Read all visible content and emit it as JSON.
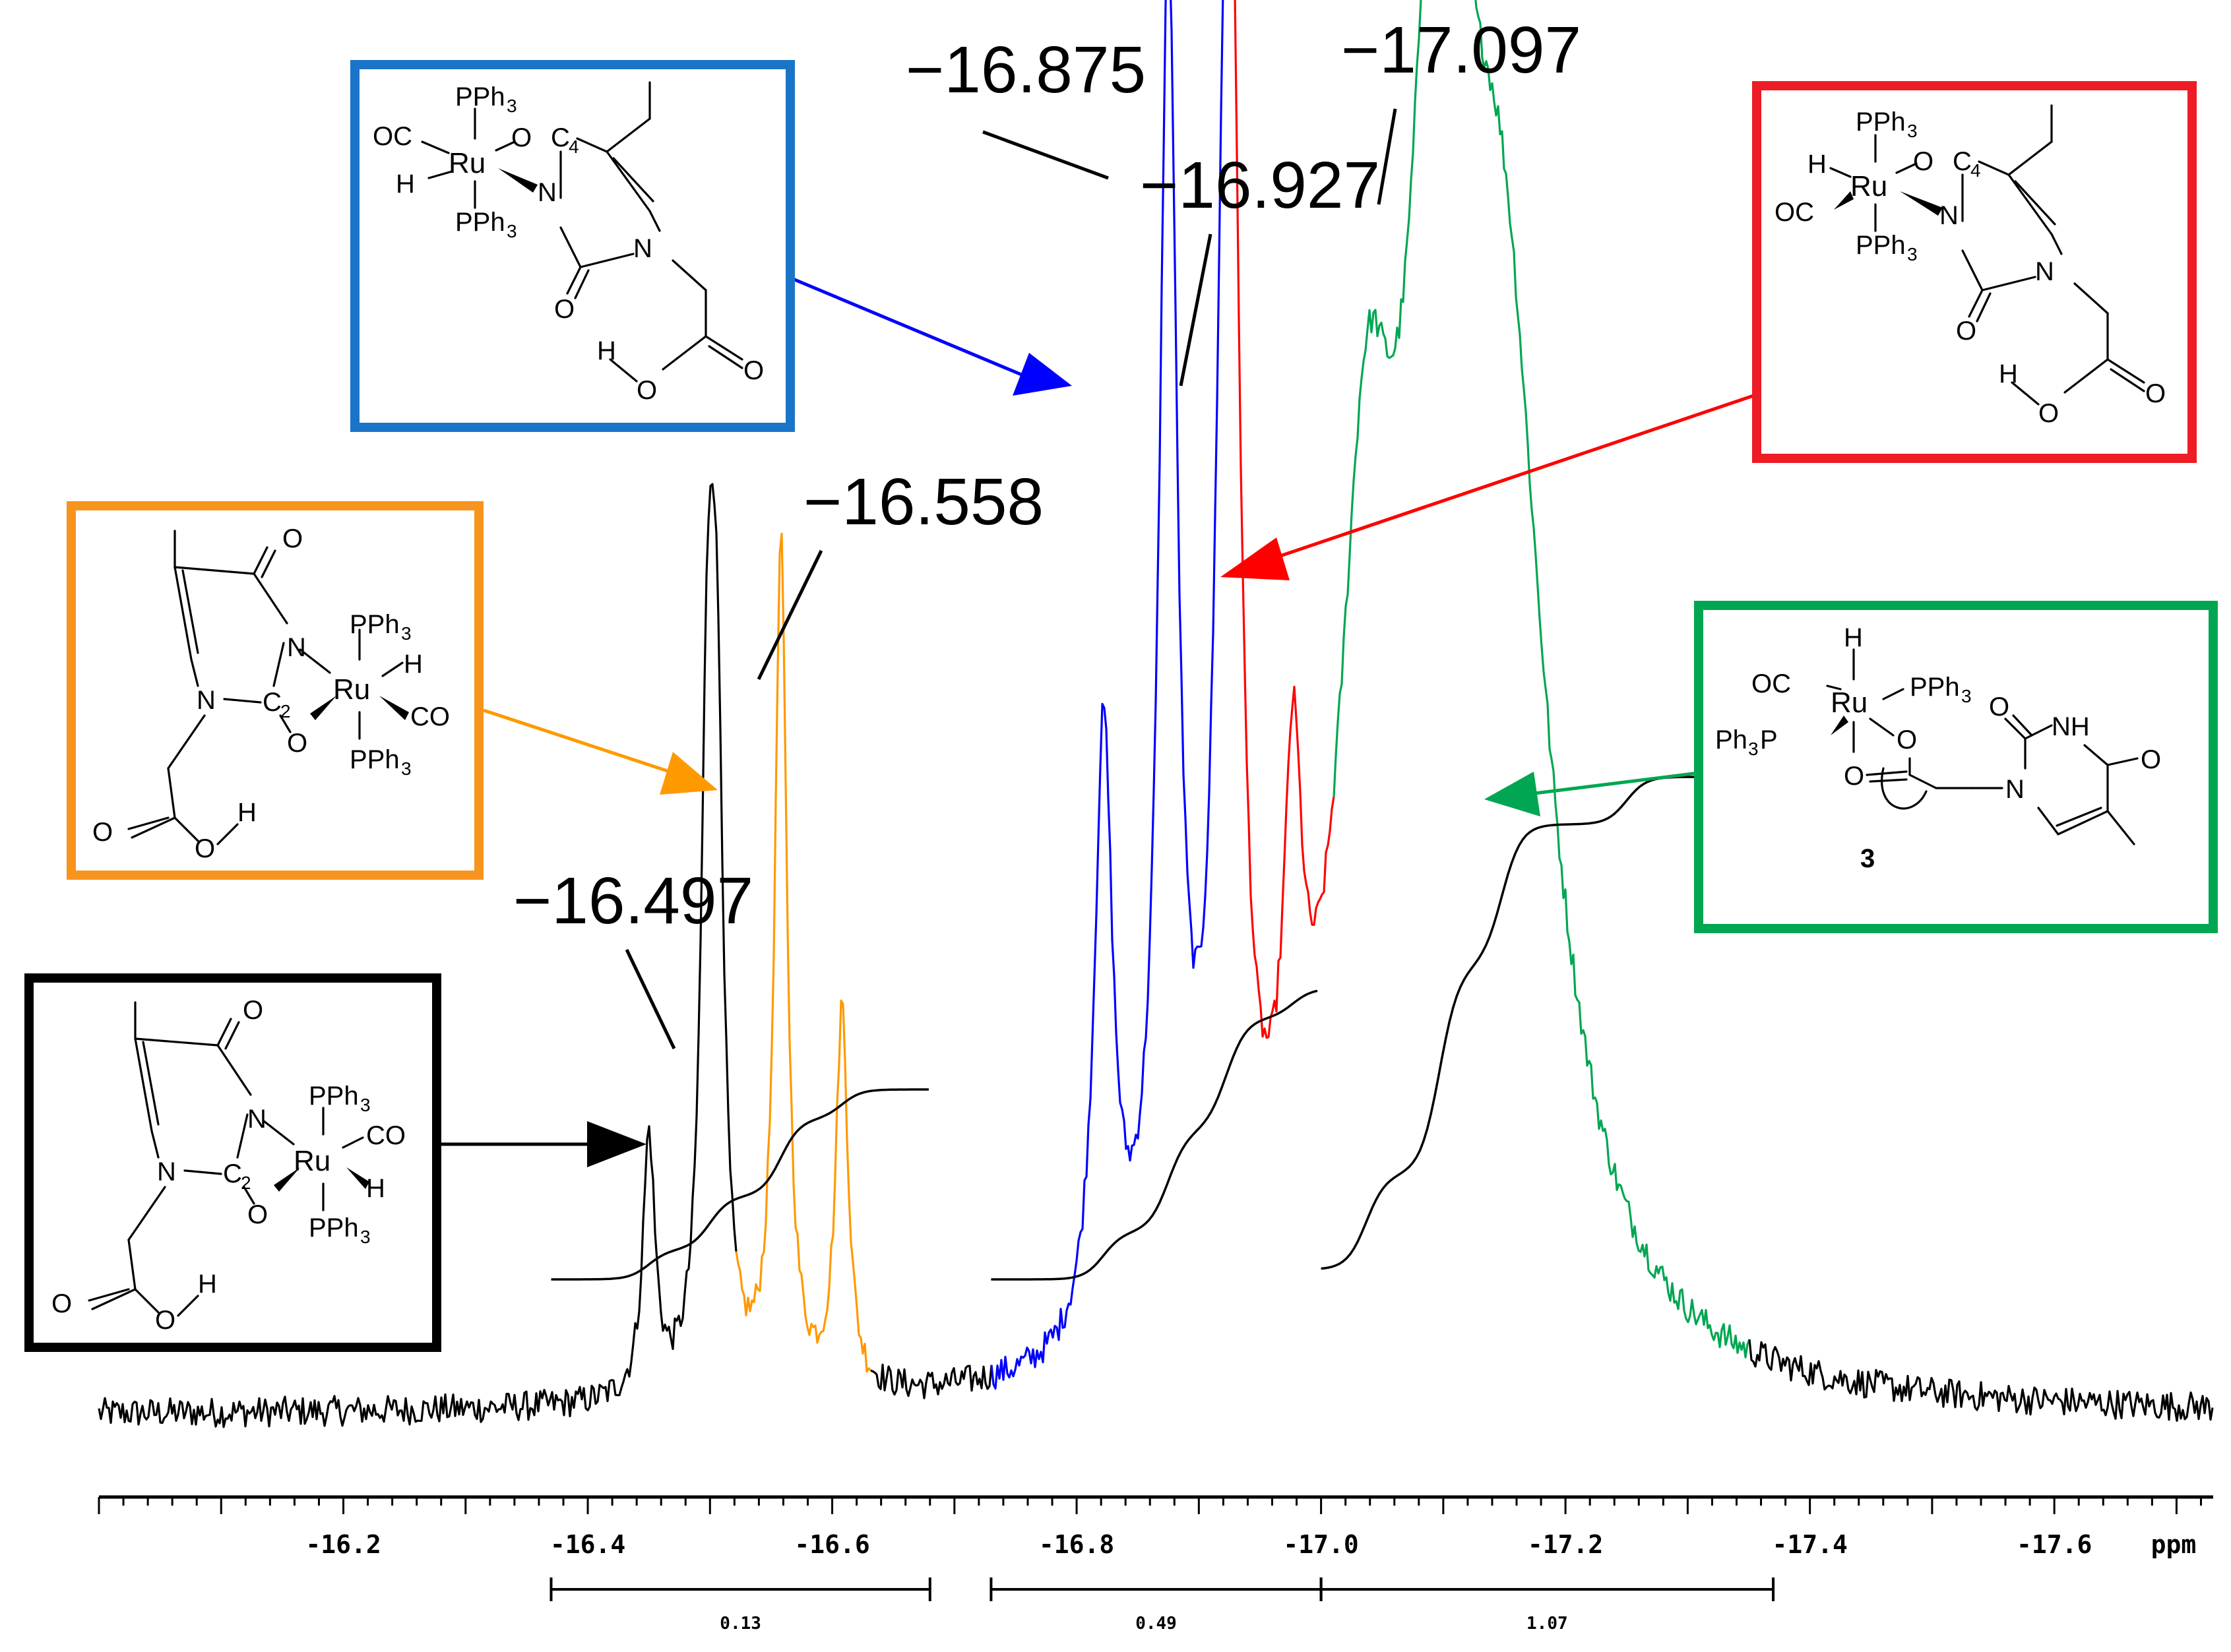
{
  "chart_data": {
    "type": "line",
    "title": "",
    "xlabel": "ppm",
    "ylabel": "",
    "x_reversed": true,
    "xlim": [
      -16.0,
      -17.73
    ],
    "x_ticks": [
      "-16.2",
      "-16.4",
      "-16.6",
      "-16.8",
      "-17.0",
      "-17.2",
      "-17.4",
      "-17.6"
    ],
    "x_tick_values": [
      -16.2,
      -16.4,
      -16.6,
      -16.8,
      -17.0,
      -17.2,
      -17.4,
      -17.6
    ],
    "y_range": [
      0,
      1
    ],
    "grid": false,
    "baseline": 0.03,
    "series": [
      {
        "color": "#000000",
        "region": [
          -16.0,
          -17.73
        ],
        "peaks": [
          [
            -16.45,
            0.19
          ],
          [
            -16.497,
            0.33
          ],
          [
            -16.502,
            0.31
          ],
          [
            -16.507,
            0.29
          ]
        ]
      },
      {
        "color": "#ff9900",
        "region": [
          -16.52,
          -16.63
        ],
        "peaks": [
          [
            -16.558,
            0.62
          ],
          [
            -16.608,
            0.28
          ]
        ]
      },
      {
        "color": "#0000ff",
        "region": [
          -16.73,
          -16.92
        ],
        "peaks": [
          [
            -16.822,
            0.45
          ],
          [
            -16.875,
            0.99
          ],
          [
            -16.92,
            0.47
          ]
        ]
      },
      {
        "color": "#ff0000",
        "region": [
          -16.92,
          -17.01
        ],
        "peaks": [
          [
            -16.927,
            0.74
          ],
          [
            -16.977,
            0.3
          ]
        ]
      },
      {
        "color": "#00a651",
        "region": [
          -17.01,
          -17.35
        ],
        "peaks": [
          [
            -17.037,
            0.52
          ],
          [
            -17.097,
            0.87
          ],
          [
            -17.148,
            0.7
          ]
        ]
      }
    ],
    "peak_labels": [
      {
        "text": "−16.497",
        "x": -16.497
      },
      {
        "text": "−16.558",
        "x": -16.558
      },
      {
        "text": "−16.875",
        "x": -16.875
      },
      {
        "text": "−16.927",
        "x": -16.927
      },
      {
        "text": "−17.097",
        "x": -17.097
      }
    ],
    "integrals": [
      {
        "from": -16.37,
        "to": -16.68,
        "label": "0.13"
      },
      {
        "from": -16.73,
        "to": -17.0,
        "label": "0.49"
      },
      {
        "from": -17.0,
        "to": -17.37,
        "label": "1.07"
      }
    ],
    "integral_curves": [
      {
        "from": -16.37,
        "to": -16.68,
        "steps": [
          [
            -16.45,
            0.05
          ],
          [
            -16.5,
            0.09
          ],
          [
            -16.558,
            0.13
          ],
          [
            -16.608,
            0.05
          ]
        ]
      },
      {
        "from": -16.73,
        "to": -17.0,
        "steps": [
          [
            -16.822,
            0.08
          ],
          [
            -16.875,
            0.17
          ],
          [
            -16.92,
            0.12
          ],
          [
            -16.927,
            0.07
          ],
          [
            -16.977,
            0.05
          ]
        ]
      },
      {
        "from": -17.0,
        "to": -17.37,
        "steps": [
          [
            -17.037,
            0.16
          ],
          [
            -17.097,
            0.35
          ],
          [
            -17.148,
            0.24
          ],
          [
            -17.25,
            0.08
          ]
        ]
      }
    ]
  },
  "structures": {
    "blue": {
      "color": "#1a75c8",
      "labels": {
        "pph3_top": "PPh",
        "sub3": "3",
        "oc": "OC",
        "ru": "Ru",
        "h": "H",
        "pph3_bot": "PPh",
        "o_c4": "O",
        "c4": "C",
        "four": "4",
        "n": "N",
        "o_bot": "O",
        "n2": "N",
        "ho_h": "H",
        "ho_o": "O",
        "co_o": "O"
      }
    },
    "red": {
      "color": "#ee1c24",
      "labels": {
        "pph3_top": "PPh",
        "sub3": "3",
        "h": "H",
        "ru": "Ru",
        "oc": "OC",
        "pph3_bot": "PPh",
        "o_c4": "O",
        "c4": "C",
        "four": "4",
        "n": "N",
        "o_bot": "O",
        "n2": "N",
        "ho_h": "H",
        "ho_o": "O",
        "co_o": "O"
      }
    },
    "orange": {
      "color": "#f7941d",
      "labels": {
        "o_top": "O",
        "n": "N",
        "pph3_top": "PPh",
        "sub3": "3",
        "h": "H",
        "ru": "Ru",
        "co": "CO",
        "n2": "N",
        "c2": "C",
        "two": "2",
        "o": "O",
        "pph3_bot": "PPh",
        "acid_o": "O",
        "acid_oh": "O",
        "acid_h": "H"
      }
    },
    "black": {
      "color": "#000000",
      "labels": {
        "o_top": "O",
        "n": "N",
        "pph3_top": "PPh",
        "sub3": "3",
        "co": "CO",
        "ru": "Ru",
        "h": "H",
        "n2": "N",
        "c2": "C",
        "two": "2",
        "o": "O",
        "pph3_bot": "PPh",
        "acid_o": "O",
        "acid_oh": "O",
        "acid_h": "H"
      }
    },
    "green": {
      "color": "#00a651",
      "labels": {
        "h": "H",
        "oc": "OC",
        "ru": "Ru",
        "pph3_right": "PPh",
        "sub3": "3",
        "ph3p": "Ph",
        "ph3p_p": "P",
        "o1": "O",
        "o2": "O",
        "o_top": "O",
        "nh": "NH",
        "n": "N",
        "o_right": "O",
        "compound_number": "3"
      }
    }
  }
}
